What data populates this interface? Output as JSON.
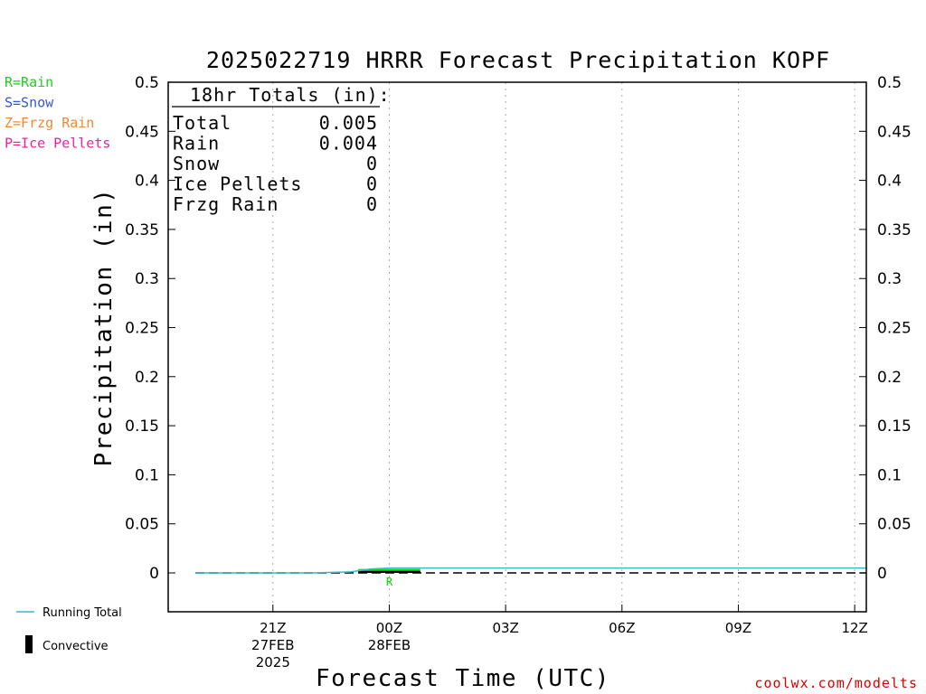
{
  "chart_data": {
    "type": "line",
    "title": "2025022719 HRRR Forecast Precipitation KOPF",
    "xlabel": "Forecast Time (UTC)",
    "ylabel": "Precipitation (in)",
    "ylim": [
      0,
      0.5
    ],
    "y_ticks": [
      "0.5",
      "0.45",
      "0.4",
      "0.35",
      "0.3",
      "0.25",
      "0.2",
      "0.15",
      "0.1",
      "0.05",
      "0"
    ],
    "x_unit": "hours since 2025-02-27 19Z",
    "xlim": [
      -0.7,
      17.3
    ],
    "x_ticks": [
      {
        "x": 2,
        "lines": [
          "21Z",
          "27FEB",
          "2025"
        ]
      },
      {
        "x": 5,
        "lines": [
          "00Z",
          "28FEB"
        ]
      },
      {
        "x": 8,
        "lines": [
          "03Z"
        ]
      },
      {
        "x": 11,
        "lines": [
          "06Z"
        ]
      },
      {
        "x": 14,
        "lines": [
          "09Z"
        ]
      },
      {
        "x": 17,
        "lines": [
          "12Z"
        ]
      }
    ],
    "grid": true,
    "series": [
      {
        "name": "Running Total",
        "color": "#33bbcc",
        "x": [
          0,
          1,
          2,
          3,
          4,
          4.5,
          5,
          6,
          7,
          8,
          9,
          10,
          11,
          12,
          13,
          14,
          15,
          16,
          17,
          18
        ],
        "values": [
          0,
          0,
          0,
          0,
          0.001,
          0.004,
          0.005,
          0.005,
          0.005,
          0.005,
          0.005,
          0.005,
          0.005,
          0.005,
          0.005,
          0.005,
          0.005,
          0.005,
          0.005,
          0.005
        ]
      }
    ],
    "hourly_bars": [
      {
        "x": 5,
        "value": 0.004,
        "type": "R",
        "color": "#00dd00",
        "convective_value": 0.002
      }
    ],
    "precip_type_legend": [
      {
        "label": "R=Rain",
        "color": "#22cc22"
      },
      {
        "label": "S=Snow",
        "color": "#3355dd"
      },
      {
        "label": "Z=Frzg Rain",
        "color": "#ee8833"
      },
      {
        "label": "P=Ice Pellets",
        "color": "#ee2299"
      }
    ],
    "bottom_legend": {
      "running_total": "Running Total",
      "convective": "Convective"
    },
    "totals": {
      "heading": "18hr Totals (in):",
      "rows": [
        {
          "label": "Total",
          "value": "0.005"
        },
        {
          "label": "Rain",
          "value": "0.004"
        },
        {
          "label": "Snow",
          "value": "0"
        },
        {
          "label": "Ice Pellets",
          "value": "0"
        },
        {
          "label": "Frzg Rain",
          "value": "0"
        }
      ]
    },
    "credit": "coolwx.com/modelts"
  }
}
